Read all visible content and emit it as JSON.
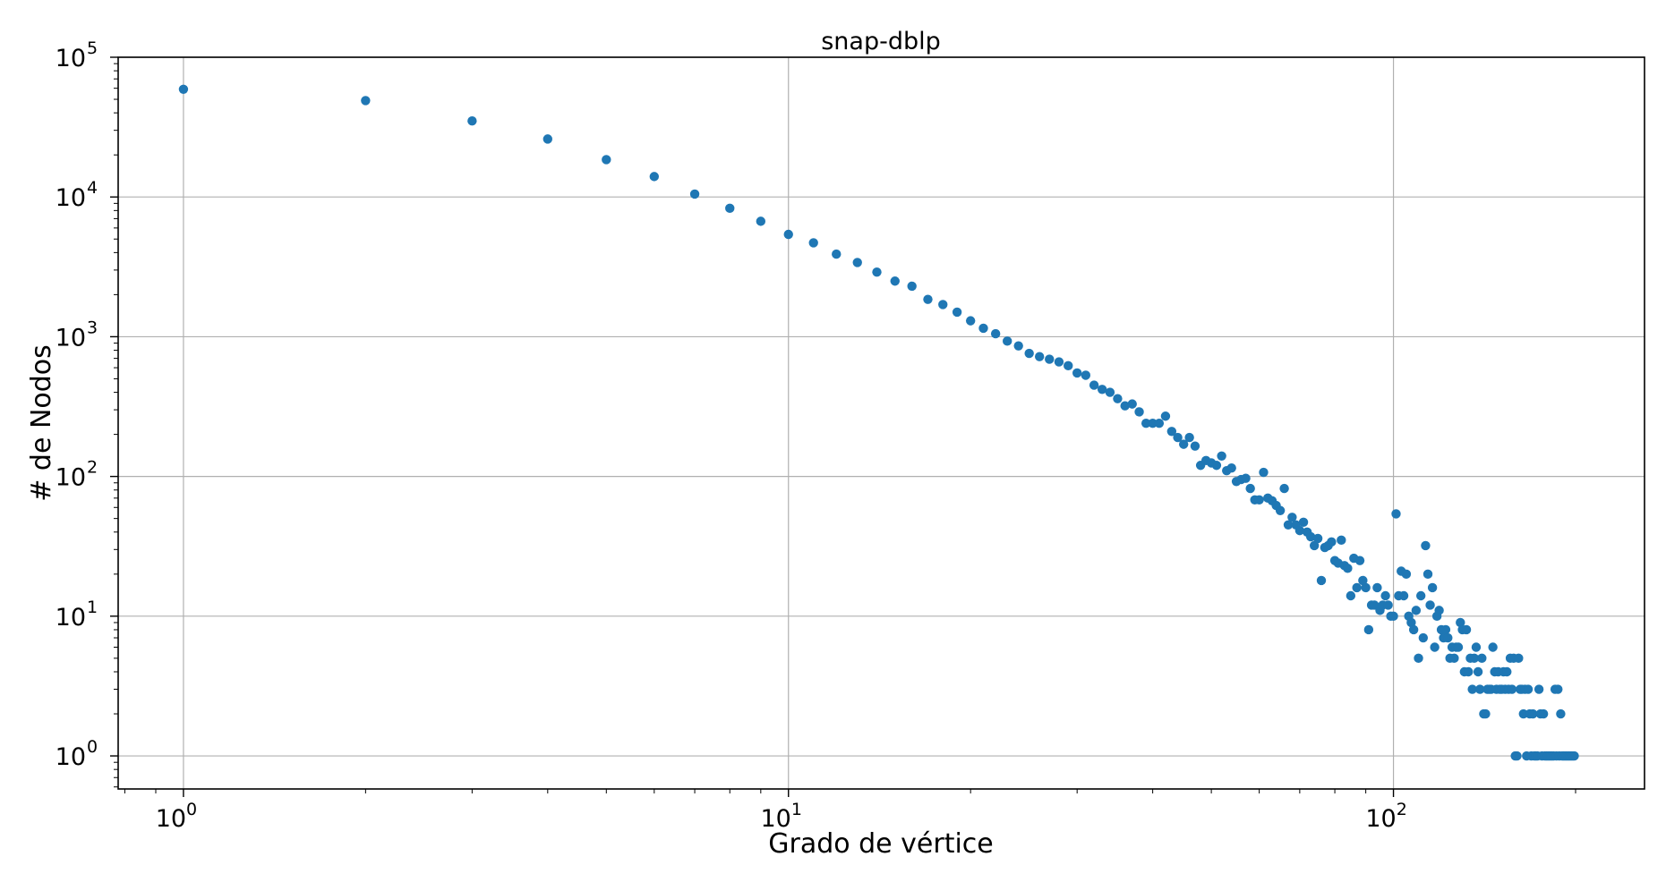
{
  "chart_data": {
    "type": "scatter",
    "title": "snap-dblp",
    "xlabel": "Grado de vértice",
    "ylabel": "# de Nodos",
    "x_scale": "log",
    "y_scale": "log",
    "xlim": [
      0.78,
      260
    ],
    "ylim": [
      0.58,
      100000
    ],
    "grid": true,
    "point_color": "#1f77b4",
    "x_ticks": [
      {
        "value": 1,
        "base": "10",
        "exp": "0"
      },
      {
        "value": 10,
        "base": "10",
        "exp": "1"
      },
      {
        "value": 100,
        "base": "10",
        "exp": "2"
      }
    ],
    "y_ticks": [
      {
        "value": 1,
        "base": "10",
        "exp": "0"
      },
      {
        "value": 10,
        "base": "10",
        "exp": "1"
      },
      {
        "value": 100,
        "base": "10",
        "exp": "2"
      },
      {
        "value": 1000,
        "base": "10",
        "exp": "3"
      },
      {
        "value": 10000,
        "base": "10",
        "exp": "4"
      },
      {
        "value": 100000,
        "base": "10",
        "exp": "5"
      }
    ],
    "points": [
      [
        1,
        59000
      ],
      [
        2,
        49000
      ],
      [
        3,
        35000
      ],
      [
        4,
        26000
      ],
      [
        5,
        18500
      ],
      [
        6,
        14000
      ],
      [
        7,
        10500
      ],
      [
        8,
        8300
      ],
      [
        9,
        6700
      ],
      [
        10,
        5400
      ],
      [
        11,
        4700
      ],
      [
        12,
        3900
      ],
      [
        13,
        3400
      ],
      [
        14,
        2900
      ],
      [
        15,
        2500
      ],
      [
        16,
        2300
      ],
      [
        17,
        1850
      ],
      [
        18,
        1700
      ],
      [
        19,
        1500
      ],
      [
        20,
        1300
      ],
      [
        21,
        1150
      ],
      [
        22,
        1050
      ],
      [
        23,
        930
      ],
      [
        24,
        860
      ],
      [
        25,
        760
      ],
      [
        26,
        720
      ],
      [
        27,
        690
      ],
      [
        28,
        660
      ],
      [
        29,
        620
      ],
      [
        30,
        550
      ],
      [
        31,
        530
      ],
      [
        32,
        450
      ],
      [
        33,
        420
      ],
      [
        34,
        400
      ],
      [
        35,
        360
      ],
      [
        36,
        320
      ],
      [
        37,
        330
      ],
      [
        38,
        290
      ],
      [
        39,
        240
      ],
      [
        40,
        240
      ],
      [
        41,
        240
      ],
      [
        42,
        270
      ],
      [
        43,
        210
      ],
      [
        44,
        190
      ],
      [
        45,
        170
      ],
      [
        46,
        190
      ],
      [
        47,
        165
      ],
      [
        48,
        120
      ],
      [
        49,
        130
      ],
      [
        50,
        125
      ],
      [
        51,
        120
      ],
      [
        52,
        140
      ],
      [
        53,
        110
      ],
      [
        54,
        115
      ],
      [
        55,
        92
      ],
      [
        56,
        95
      ],
      [
        57,
        97
      ],
      [
        58,
        82
      ],
      [
        59,
        68
      ],
      [
        60,
        68
      ],
      [
        61,
        107
      ],
      [
        62,
        70
      ],
      [
        63,
        67
      ],
      [
        64,
        62
      ],
      [
        65,
        57
      ],
      [
        66,
        82
      ],
      [
        67,
        45
      ],
      [
        68,
        51
      ],
      [
        69,
        45
      ],
      [
        70,
        41
      ],
      [
        71,
        47
      ],
      [
        72,
        40
      ],
      [
        73,
        37
      ],
      [
        74,
        32
      ],
      [
        75,
        36
      ],
      [
        76,
        18
      ],
      [
        77,
        31
      ],
      [
        78,
        32
      ],
      [
        79,
        34
      ],
      [
        80,
        25
      ],
      [
        81,
        24
      ],
      [
        82,
        35
      ],
      [
        83,
        23
      ],
      [
        84,
        22
      ],
      [
        85,
        14
      ],
      [
        86,
        26
      ],
      [
        87,
        16
      ],
      [
        88,
        25
      ],
      [
        89,
        18
      ],
      [
        90,
        16
      ],
      [
        91,
        8
      ],
      [
        92,
        12
      ],
      [
        93,
        12
      ],
      [
        94,
        16
      ],
      [
        95,
        11
      ],
      [
        96,
        12
      ],
      [
        97,
        14
      ],
      [
        98,
        12
      ],
      [
        99,
        10
      ],
      [
        100,
        10
      ],
      [
        101,
        54
      ],
      [
        102,
        14
      ],
      [
        103,
        21
      ],
      [
        104,
        14
      ],
      [
        105,
        20
      ],
      [
        106,
        10
      ],
      [
        107,
        9
      ],
      [
        108,
        8
      ],
      [
        109,
        11
      ],
      [
        110,
        5
      ],
      [
        111,
        14
      ],
      [
        112,
        7
      ],
      [
        113,
        32
      ],
      [
        114,
        20
      ],
      [
        115,
        12
      ],
      [
        116,
        16
      ],
      [
        117,
        6
      ],
      [
        118,
        10
      ],
      [
        119,
        11
      ],
      [
        120,
        8
      ],
      [
        121,
        7
      ],
      [
        122,
        8
      ],
      [
        123,
        7
      ],
      [
        124,
        5
      ],
      [
        125,
        6
      ],
      [
        126,
        5
      ],
      [
        127,
        6
      ],
      [
        128,
        6
      ],
      [
        129,
        9
      ],
      [
        130,
        8
      ],
      [
        131,
        4
      ],
      [
        132,
        8
      ],
      [
        133,
        4
      ],
      [
        134,
        5
      ],
      [
        135,
        3
      ],
      [
        136,
        5
      ],
      [
        137,
        6
      ],
      [
        138,
        4
      ],
      [
        139,
        3
      ],
      [
        140,
        5
      ],
      [
        141,
        2
      ],
      [
        142,
        2
      ],
      [
        143,
        3
      ],
      [
        144,
        3
      ],
      [
        145,
        3
      ],
      [
        146,
        6
      ],
      [
        147,
        4
      ],
      [
        148,
        3
      ],
      [
        149,
        4
      ],
      [
        150,
        3
      ],
      [
        151,
        3
      ],
      [
        152,
        4
      ],
      [
        153,
        3
      ],
      [
        154,
        4
      ],
      [
        155,
        3
      ],
      [
        156,
        5
      ],
      [
        157,
        3
      ],
      [
        158,
        5
      ],
      [
        159,
        1
      ],
      [
        160,
        1
      ],
      [
        161,
        5
      ],
      [
        162,
        3
      ],
      [
        163,
        3
      ],
      [
        164,
        2
      ],
      [
        165,
        3
      ],
      [
        166,
        1
      ],
      [
        167,
        3
      ],
      [
        168,
        2
      ],
      [
        169,
        1
      ],
      [
        170,
        2
      ],
      [
        171,
        1
      ],
      [
        172,
        1
      ],
      [
        173,
        1
      ],
      [
        174,
        3
      ],
      [
        175,
        2
      ],
      [
        176,
        1
      ],
      [
        177,
        2
      ],
      [
        178,
        1
      ],
      [
        179,
        1
      ],
      [
        180,
        1
      ],
      [
        181,
        1
      ],
      [
        182,
        1
      ],
      [
        183,
        1
      ],
      [
        184,
        1
      ],
      [
        185,
        3
      ],
      [
        186,
        1
      ],
      [
        187,
        3
      ],
      [
        188,
        1
      ],
      [
        189,
        2
      ],
      [
        190,
        1
      ],
      [
        191,
        1
      ],
      [
        192,
        1
      ],
      [
        193,
        1
      ],
      [
        194,
        1
      ],
      [
        195,
        1
      ],
      [
        196,
        1
      ],
      [
        197,
        1
      ],
      [
        198,
        1
      ],
      [
        199,
        1
      ]
    ]
  }
}
